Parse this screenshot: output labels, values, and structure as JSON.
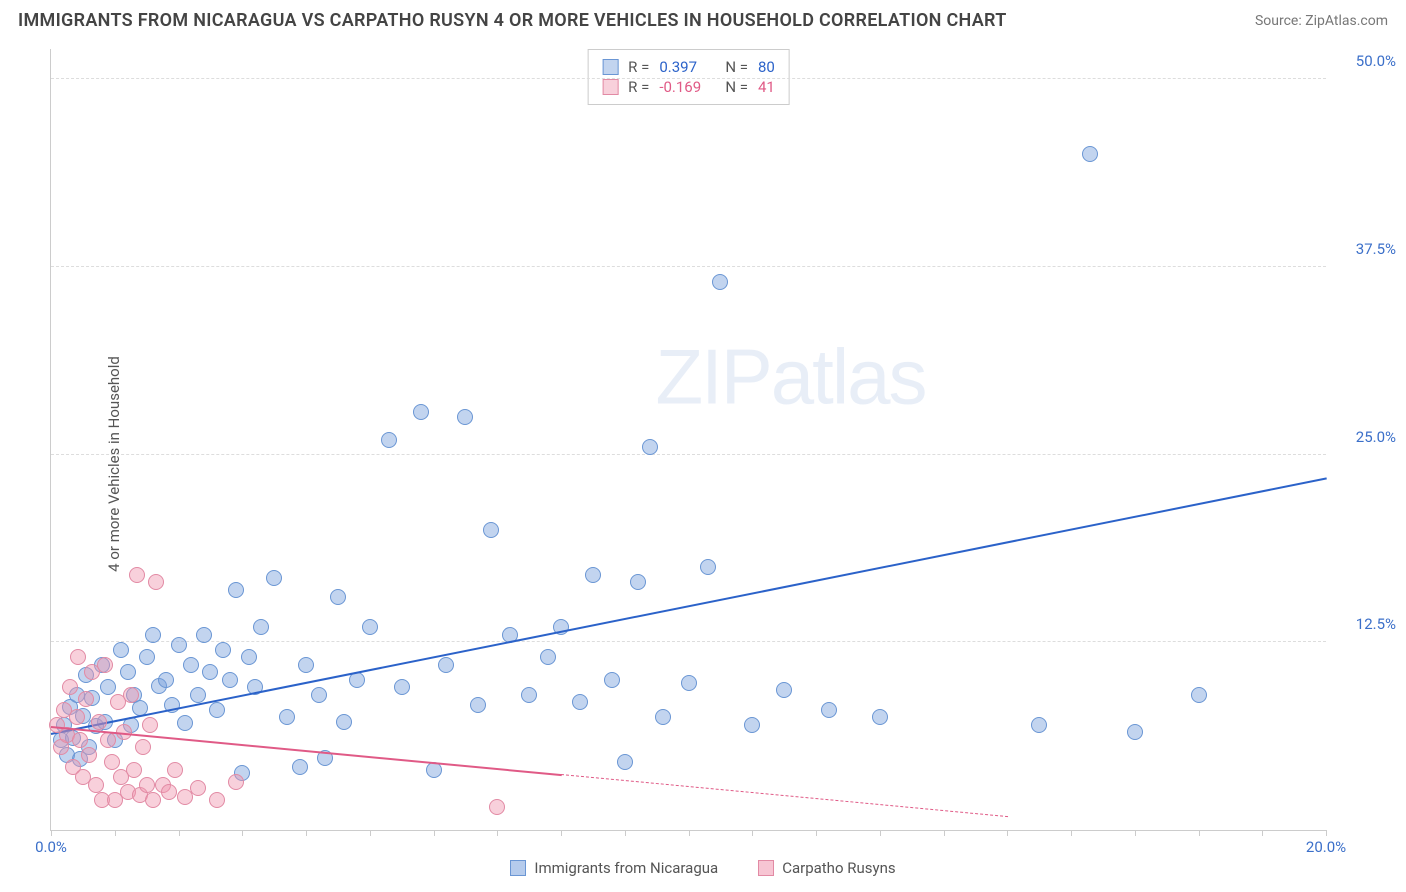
{
  "title": "IMMIGRANTS FROM NICARAGUA VS CARPATHO RUSYN 4 OR MORE VEHICLES IN HOUSEHOLD CORRELATION CHART",
  "source": "Source: ZipAtlas.com",
  "y_axis_label": "4 or more Vehicles in Household",
  "watermark": "ZIPatlas",
  "chart": {
    "type": "scatter",
    "xlim": [
      0,
      20
    ],
    "ylim": [
      0,
      52
    ],
    "x_ticks": [
      {
        "value": 0,
        "label": "0.0%",
        "color": "#3b6fc9"
      },
      {
        "value": 20,
        "label": "20.0%",
        "color": "#3b6fc9"
      }
    ],
    "y_ticks": [
      {
        "value": 12.5,
        "label": "12.5%",
        "color": "#3b6fc9"
      },
      {
        "value": 25.0,
        "label": "25.0%",
        "color": "#3b6fc9"
      },
      {
        "value": 37.5,
        "label": "37.5%",
        "color": "#3b6fc9"
      },
      {
        "value": 50.0,
        "label": "50.0%",
        "color": "#3b6fc9"
      }
    ],
    "x_minor_tick_step": 1.0,
    "grid_color": "#dddddd",
    "background_color": "#ffffff",
    "series": [
      {
        "name": "Immigrants from Nicaragua",
        "marker_fill": "rgba(120,160,220,0.45)",
        "marker_stroke": "#6a96d4",
        "marker_radius": 8,
        "trend": {
          "x0": 0,
          "y0": 6.5,
          "x1": 20,
          "y1": 23.5,
          "color": "#2b62c9",
          "solid_until_x": 20
        },
        "stats": {
          "R": "0.397",
          "N": "80",
          "color": "#2b62c9"
        },
        "points": [
          [
            0.15,
            6.0
          ],
          [
            0.2,
            7.0
          ],
          [
            0.25,
            5.0
          ],
          [
            0.3,
            8.2
          ],
          [
            0.35,
            6.1
          ],
          [
            0.4,
            9.0
          ],
          [
            0.45,
            4.7
          ],
          [
            0.5,
            7.6
          ],
          [
            0.55,
            10.3
          ],
          [
            0.6,
            5.5
          ],
          [
            0.65,
            8.8
          ],
          [
            0.7,
            6.9
          ],
          [
            0.8,
            11.0
          ],
          [
            0.85,
            7.2
          ],
          [
            0.9,
            9.5
          ],
          [
            1.0,
            6.0
          ],
          [
            1.1,
            12.0
          ],
          [
            1.2,
            10.5
          ],
          [
            1.25,
            7.0
          ],
          [
            1.3,
            9.0
          ],
          [
            1.4,
            8.1
          ],
          [
            1.5,
            11.5
          ],
          [
            1.6,
            13.0
          ],
          [
            1.7,
            9.6
          ],
          [
            1.8,
            10.0
          ],
          [
            1.9,
            8.3
          ],
          [
            2.0,
            12.3
          ],
          [
            2.1,
            7.1
          ],
          [
            2.2,
            11.0
          ],
          [
            2.3,
            9.0
          ],
          [
            2.4,
            13.0
          ],
          [
            2.5,
            10.5
          ],
          [
            2.6,
            8.0
          ],
          [
            2.7,
            12.0
          ],
          [
            2.8,
            10.0
          ],
          [
            2.9,
            16.0
          ],
          [
            3.0,
            3.8
          ],
          [
            3.1,
            11.5
          ],
          [
            3.2,
            9.5
          ],
          [
            3.3,
            13.5
          ],
          [
            3.5,
            16.8
          ],
          [
            3.7,
            7.5
          ],
          [
            3.9,
            4.2
          ],
          [
            4.0,
            11.0
          ],
          [
            4.2,
            9.0
          ],
          [
            4.3,
            4.8
          ],
          [
            4.5,
            15.5
          ],
          [
            4.6,
            7.2
          ],
          [
            4.8,
            10.0
          ],
          [
            5.0,
            13.5
          ],
          [
            5.3,
            26.0
          ],
          [
            5.5,
            9.5
          ],
          [
            5.8,
            27.8
          ],
          [
            6.0,
            4.0
          ],
          [
            6.2,
            11.0
          ],
          [
            6.5,
            27.5
          ],
          [
            6.7,
            8.3
          ],
          [
            6.9,
            20.0
          ],
          [
            7.2,
            13.0
          ],
          [
            7.5,
            9.0
          ],
          [
            7.8,
            11.5
          ],
          [
            8.0,
            13.5
          ],
          [
            8.3,
            8.5
          ],
          [
            8.5,
            17.0
          ],
          [
            8.8,
            10.0
          ],
          [
            9.0,
            4.5
          ],
          [
            9.2,
            16.5
          ],
          [
            9.4,
            25.5
          ],
          [
            9.6,
            7.5
          ],
          [
            10.0,
            9.8
          ],
          [
            10.3,
            17.5
          ],
          [
            10.5,
            36.5
          ],
          [
            11.0,
            7.0
          ],
          [
            11.5,
            9.3
          ],
          [
            12.2,
            8.0
          ],
          [
            13.0,
            7.5
          ],
          [
            15.5,
            7.0
          ],
          [
            16.3,
            45.0
          ],
          [
            17.0,
            6.5
          ],
          [
            18.0,
            9.0
          ]
        ]
      },
      {
        "name": "Carpatho Rusyns",
        "marker_fill": "rgba(240,150,175,0.45)",
        "marker_stroke": "#e28aa4",
        "marker_radius": 8,
        "trend": {
          "x0": 0,
          "y0": 7.0,
          "x1": 15,
          "y1": 1.0,
          "color": "#e05a86",
          "solid_until_x": 8
        },
        "stats": {
          "R": "-0.169",
          "N": "41",
          "color": "#e05a86"
        },
        "points": [
          [
            0.1,
            7.0
          ],
          [
            0.15,
            5.5
          ],
          [
            0.2,
            8.0
          ],
          [
            0.25,
            6.3
          ],
          [
            0.3,
            9.5
          ],
          [
            0.35,
            4.2
          ],
          [
            0.4,
            7.5
          ],
          [
            0.42,
            11.5
          ],
          [
            0.45,
            6.0
          ],
          [
            0.5,
            3.5
          ],
          [
            0.55,
            8.7
          ],
          [
            0.6,
            5.0
          ],
          [
            0.65,
            10.5
          ],
          [
            0.7,
            3.0
          ],
          [
            0.75,
            7.2
          ],
          [
            0.8,
            2.0
          ],
          [
            0.85,
            11.0
          ],
          [
            0.9,
            6.0
          ],
          [
            0.95,
            4.5
          ],
          [
            1.0,
            2.0
          ],
          [
            1.05,
            8.5
          ],
          [
            1.1,
            3.5
          ],
          [
            1.15,
            6.5
          ],
          [
            1.2,
            2.5
          ],
          [
            1.25,
            9.0
          ],
          [
            1.3,
            4.0
          ],
          [
            1.35,
            17.0
          ],
          [
            1.4,
            2.3
          ],
          [
            1.45,
            5.5
          ],
          [
            1.5,
            3.0
          ],
          [
            1.55,
            7.0
          ],
          [
            1.6,
            2.0
          ],
          [
            1.65,
            16.5
          ],
          [
            1.75,
            3.0
          ],
          [
            1.85,
            2.5
          ],
          [
            1.95,
            4.0
          ],
          [
            2.1,
            2.2
          ],
          [
            2.3,
            2.8
          ],
          [
            2.6,
            2.0
          ],
          [
            2.9,
            3.2
          ],
          [
            7.0,
            1.5
          ]
        ]
      }
    ]
  },
  "stats_labels": {
    "R": "R =",
    "N": "N ="
  },
  "legend": [
    {
      "label": "Immigrants from Nicaragua",
      "fill": "rgba(120,160,220,0.55)",
      "stroke": "#6a96d4"
    },
    {
      "label": "Carpatho Rusyns",
      "fill": "rgba(240,150,175,0.55)",
      "stroke": "#e28aa4"
    }
  ]
}
